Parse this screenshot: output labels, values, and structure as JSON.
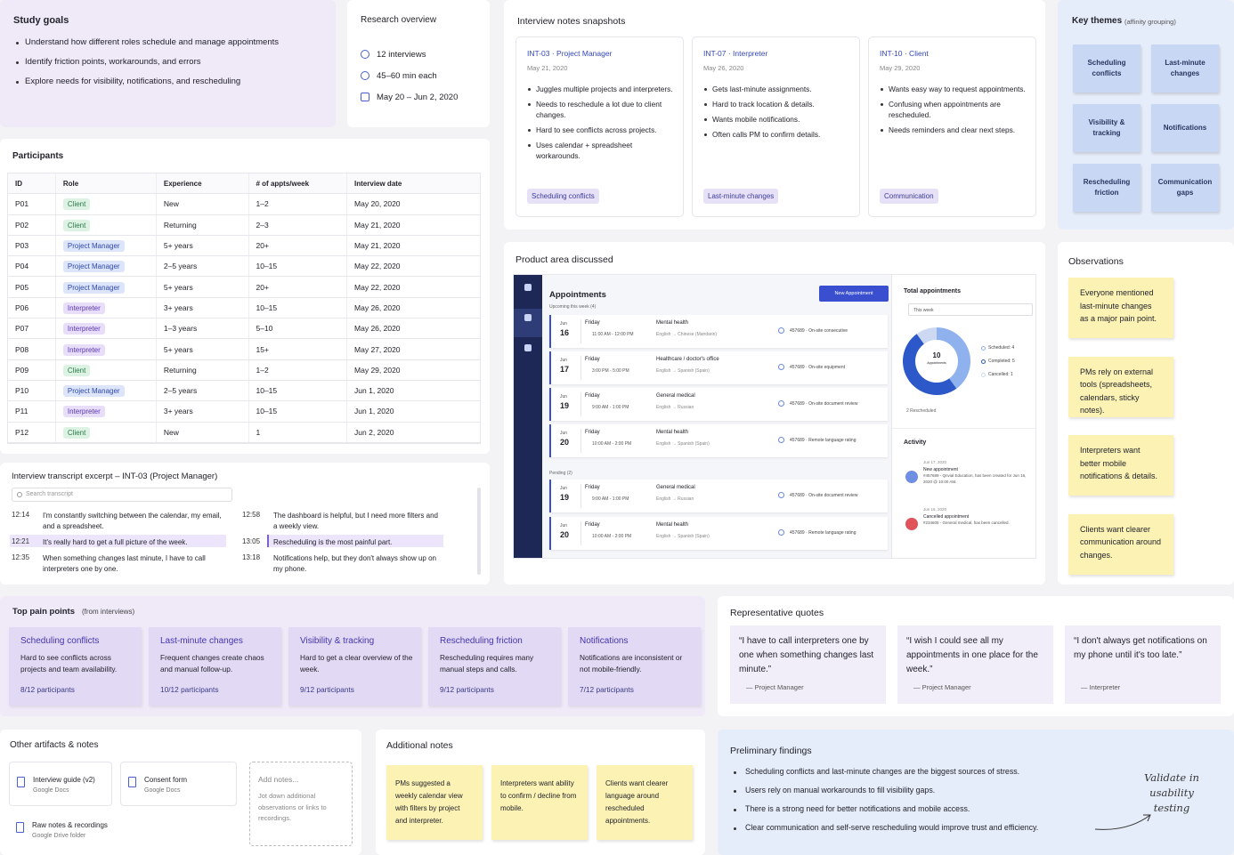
{
  "study_goals": {
    "title": "Study goals",
    "items": [
      "Understand how different roles schedule and manage appointments",
      "Identify friction points, workarounds, and errors",
      "Explore needs for visibility, notifications, and rescheduling"
    ]
  },
  "research_overview": {
    "title": "Research overview",
    "items": [
      "12 interviews",
      "45–60 min each",
      "May 20 – Jun 2, 2020"
    ]
  },
  "interview_notes": {
    "title": "Interview notes snapshots",
    "cards": [
      {
        "id": "INT-03 · Project Manager",
        "date": "May 21, 2020",
        "bullets": [
          "Juggles multiple projects and interpreters.",
          "Needs to reschedule a lot due to client changes.",
          "Hard to see conflicts across projects.",
          "Uses calendar + spreadsheet workarounds."
        ],
        "tag": "Scheduling conflicts"
      },
      {
        "id": "INT-07 · Interpreter",
        "date": "May 26, 2020",
        "bullets": [
          "Gets last-minute assignments.",
          "Hard to track location & details.",
          "Wants mobile notifications.",
          "Often calls PM to confirm details."
        ],
        "tag": "Last-minute changes"
      },
      {
        "id": "INT-10 · Client",
        "date": "May 29, 2020",
        "bullets": [
          "Wants easy way to request appointments.",
          "Confusing when appointments are rescheduled.",
          "Needs reminders and clear next steps."
        ],
        "tag": "Communication"
      }
    ]
  },
  "key_themes": {
    "title": "Key themes",
    "subtitle": "(affinity grouping)",
    "themes": [
      "Scheduling conflicts",
      "Last-minute changes",
      "Visibility & tracking",
      "Notifications",
      "Rescheduling friction",
      "Communication gaps"
    ]
  },
  "participants": {
    "title": "Participants",
    "columns": [
      "ID",
      "Role",
      "Experience",
      "# of appts/week",
      "Interview date"
    ],
    "rows": [
      [
        "P01",
        "Client",
        "New",
        "1–2",
        "May 20, 2020"
      ],
      [
        "P02",
        "Client",
        "Returning",
        "2–3",
        "May 21, 2020"
      ],
      [
        "P03",
        "Project Manager",
        "5+ years",
        "20+",
        "May 21, 2020"
      ],
      [
        "P04",
        "Project Manager",
        "2–5 years",
        "10–15",
        "May 22, 2020"
      ],
      [
        "P05",
        "Project Manager",
        "5+ years",
        "20+",
        "May 22, 2020"
      ],
      [
        "P06",
        "Interpreter",
        "3+ years",
        "10–15",
        "May 26, 2020"
      ],
      [
        "P07",
        "Interpreter",
        "1–3 years",
        "5–10",
        "May 26, 2020"
      ],
      [
        "P08",
        "Interpreter",
        "5+ years",
        "15+",
        "May 27, 2020"
      ],
      [
        "P09",
        "Client",
        "Returning",
        "1–2",
        "May 29, 2020"
      ],
      [
        "P10",
        "Project Manager",
        "2–5 years",
        "10–15",
        "Jun 1, 2020"
      ],
      [
        "P11",
        "Interpreter",
        "3+ years",
        "10–15",
        "Jun 1, 2020"
      ],
      [
        "P12",
        "Client",
        "New",
        "1",
        "Jun 2, 2020"
      ]
    ]
  },
  "transcript": {
    "title": "Interview transcript excerpt – INT-03 (Project Manager)",
    "search": "Search transcript",
    "lines": [
      {
        "time": "12:14",
        "text": "I'm constantly switching between the calendar, my email, and a spreadsheet.",
        "highlight": false
      },
      {
        "time": "12:21",
        "text": "It's really hard to get a full picture of the week.",
        "highlight": true
      },
      {
        "time": "12:35",
        "text": "When something changes last minute, I have to call interpreters one by one.",
        "highlight": false
      },
      {
        "time": "12:58",
        "text": "The dashboard is helpful, but I need more filters and a weekly view.",
        "highlight": false
      },
      {
        "time": "13:05",
        "text": "Rescheduling is the most painful part.",
        "highlight": true
      },
      {
        "time": "13:18",
        "text": "Notifications help, but they don't always show up on my phone.",
        "highlight": false
      }
    ]
  },
  "product_area": {
    "title": "Product area discussed",
    "mockup": {
      "heading": "Appointments",
      "upcoming": "Upcoming this week (4)",
      "button": "New Appointment",
      "pending": "Pending (2)",
      "upcoming_rows": [
        {
          "month": "Jun",
          "day": "16",
          "weekday": "Friday",
          "time": "11:00 AM - 12:00 PM",
          "service": "Mental health",
          "language": "English → Chinese (Mandarin)",
          "code": "457689 · On-site consecutive"
        },
        {
          "month": "Jun",
          "day": "17",
          "weekday": "Friday",
          "time": "3:00 PM - 5:00 PM",
          "service": "Healthcare / doctor's office",
          "language": "English → Spanish (Spain)",
          "code": "457689 · On-site equipment"
        },
        {
          "month": "Jun",
          "day": "19",
          "weekday": "Friday",
          "time": "9:00 AM - 1:00 PM",
          "service": "General medical",
          "language": "English → Russian",
          "code": "457689 · On-site document review"
        },
        {
          "month": "Jun",
          "day": "20",
          "weekday": "Friday",
          "time": "10:00 AM - 2:00 PM",
          "service": "Mental health",
          "language": "English → Spanish (Spain)",
          "code": "457689 · Remote language rating"
        }
      ],
      "pending_rows": [
        {
          "month": "Jun",
          "day": "19",
          "weekday": "Friday",
          "time": "9:00 AM - 1:00 PM",
          "service": "General medical",
          "language": "English → Russian",
          "code": "457689 · On-site document review"
        },
        {
          "month": "Jun",
          "day": "20",
          "weekday": "Friday",
          "time": "10:00 AM - 2:00 PM",
          "service": "Mental health",
          "language": "English → Spanish (Spain)",
          "code": "457689 · Remote language rating"
        }
      ],
      "total_title": "Total appointments",
      "period": "This week",
      "donut": {
        "total": 10,
        "total_label": "Appointments",
        "values": [
          4,
          5,
          1
        ],
        "value_labels": [
          "Scheduled: 4",
          "Completed: 5",
          "Cancelled: 1"
        ],
        "colors": [
          "#8fb1ee",
          "#2c58c9",
          "#cdd9f2"
        ]
      },
      "rescheduled": "2 Rescheduled",
      "activity_title": "Activity",
      "activity": [
        {
          "date": "Jun 17, 2020",
          "title": "New appointment",
          "desc": "#457689 - Qnvial Education, has been created for Jun 16, 2020 @ 10:00 AM."
        },
        {
          "date": "Jun 16, 2020",
          "title": "Cancelled appointment",
          "desc": "#234605 - General medical, has been cancelled."
        }
      ]
    }
  },
  "observations": {
    "title": "Observations",
    "notes": [
      "Everyone mentioned last-minute changes as a major pain point.",
      "PMs rely on external tools (spreadsheets, calendars, sticky notes).",
      "Interpreters want better mobile notifications & details.",
      "Clients want clearer communication around changes."
    ]
  },
  "pain_points": {
    "title": "Top pain points",
    "subtitle": "(from interviews)",
    "items": [
      {
        "title": "Scheduling conflicts",
        "desc": "Hard to see conflicts across projects and team availability.",
        "count": "8/12 participants"
      },
      {
        "title": "Last-minute changes",
        "desc": "Frequent changes create chaos and manual follow-up.",
        "count": "10/12 participants"
      },
      {
        "title": "Visibility & tracking",
        "desc": "Hard to get a clear overview of the week.",
        "count": "9/12 participants"
      },
      {
        "title": "Rescheduling friction",
        "desc": "Rescheduling requires many manual steps and calls.",
        "count": "9/12 participants"
      },
      {
        "title": "Notifications",
        "desc": "Notifications are inconsistent or not mobile-friendly.",
        "count": "7/12 participants"
      }
    ]
  },
  "quotes": {
    "title": "Representative quotes",
    "items": [
      {
        "quote": "“I have to call interpreters one by one when something changes last minute.”",
        "author": "— Project Manager"
      },
      {
        "quote": "“I wish I could see all my appointments in one place for the week.”",
        "author": "— Project Manager"
      },
      {
        "quote": "“I don't always get notifications on my phone until it's too late.”",
        "author": "— Interpreter"
      }
    ]
  },
  "artifacts": {
    "title": "Other artifacts & notes",
    "items": [
      {
        "name": "Interview guide (v2)",
        "source": "Google Docs"
      },
      {
        "name": "Consent form",
        "source": "Google Docs"
      },
      {
        "name": "Raw notes & recordings",
        "source": "Google Drive folder"
      }
    ],
    "add_notes": {
      "title": "Add notes...",
      "desc": "Jot down additional observations or links to recordings."
    }
  },
  "additional_notes": {
    "title": "Additional notes",
    "notes": [
      "PMs suggested a weekly calendar view with filters by project and interpreter.",
      "Interpreters want ability to confirm / decline from mobile.",
      "Clients want clearer language around rescheduled appointments."
    ]
  },
  "findings": {
    "title": "Preliminary findings",
    "items": [
      "Scheduling conflicts and last-minute changes are the biggest sources of stress.",
      "Users rely on manual workarounds to fill visibility gaps.",
      "There is a strong need for better notifications and mobile access.",
      "Clear communication and self-serve rescheduling would improve trust and efficiency."
    ],
    "annotation": "Validate in usability testing"
  }
}
